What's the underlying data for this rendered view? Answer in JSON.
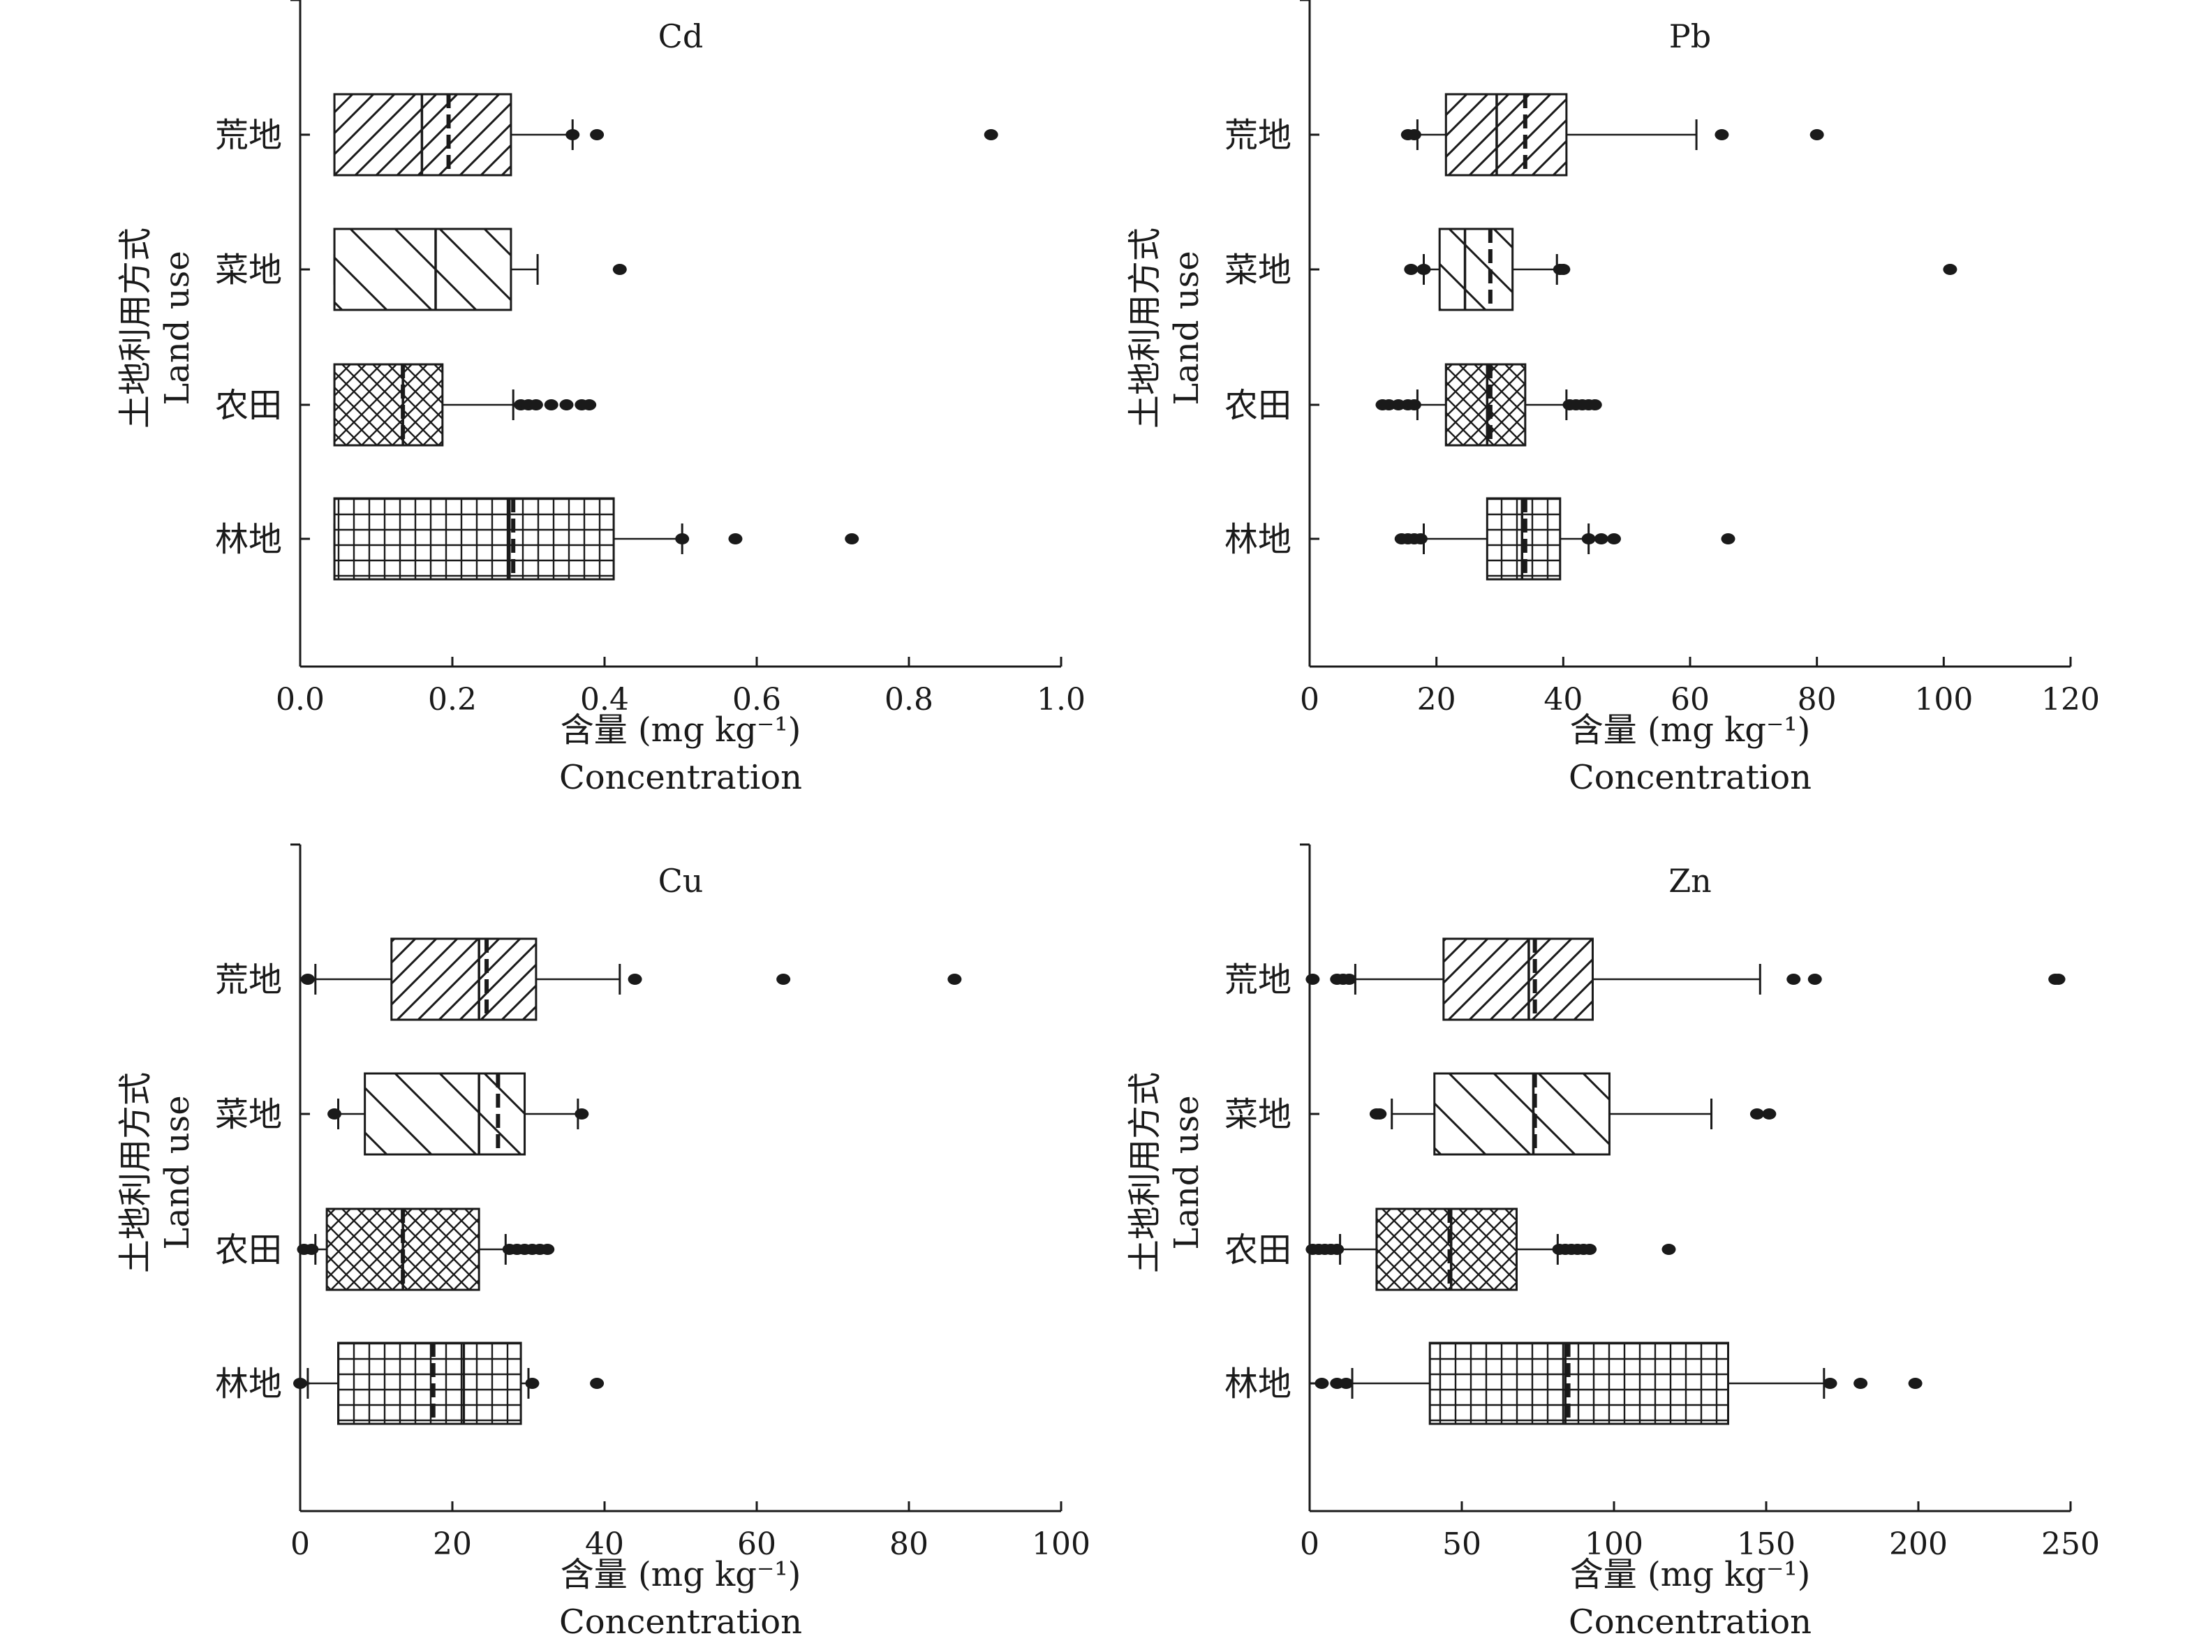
{
  "chart_data": [
    {
      "type": "box",
      "title": "Cd",
      "ylabel_zh": "土地利用方式",
      "ylabel_en": "Land use",
      "xlabel_zh": "含量 (mg kg⁻¹)",
      "xlabel_en": "Concentration",
      "xlim": [
        0,
        1.0
      ],
      "xticks": [
        "0.0",
        "0.2",
        "0.4",
        "0.6",
        "0.8",
        "1.0"
      ],
      "xtick_values": [
        0,
        0.2,
        0.4,
        0.6,
        0.8,
        1.0
      ],
      "categories": [
        "荒地",
        "菜地",
        "农田",
        "林地"
      ],
      "boxes": [
        {
          "category": "荒地",
          "pattern": "diag-up",
          "q1": 0.045,
          "median": 0.16,
          "mean": 0.195,
          "q3": 0.277,
          "whisker_low": 0.045,
          "whisker_high": 0.358,
          "outliers": [
            0.358,
            0.39,
            0.908
          ]
        },
        {
          "category": "菜地",
          "pattern": "diag-down",
          "q1": 0.045,
          "median": 0.178,
          "mean": null,
          "q3": 0.277,
          "whisker_low": 0.045,
          "whisker_high": 0.312,
          "outliers": [
            0.42
          ]
        },
        {
          "category": "农田",
          "pattern": "crosshatch",
          "q1": 0.045,
          "median": 0.135,
          "mean": 0.135,
          "q3": 0.187,
          "whisker_low": 0.045,
          "whisker_high": 0.28,
          "outliers": [
            0.29,
            0.3,
            0.31,
            0.33,
            0.35,
            0.37,
            0.38
          ]
        },
        {
          "category": "林地",
          "pattern": "grid",
          "q1": 0.045,
          "median": 0.275,
          "mean": 0.28,
          "q3": 0.412,
          "whisker_low": 0.045,
          "whisker_high": 0.502,
          "outliers": [
            0.502,
            0.572,
            0.725
          ]
        }
      ]
    },
    {
      "type": "box",
      "title": "Pb",
      "ylabel_zh": "土地利用方式",
      "ylabel_en": "Land use",
      "xlabel_zh": "含量 (mg kg⁻¹)",
      "xlabel_en": "Concentration",
      "xlim": [
        0,
        120
      ],
      "xticks": [
        "0",
        "20",
        "40",
        "60",
        "80",
        "100",
        "120"
      ],
      "xtick_values": [
        0,
        20,
        40,
        60,
        80,
        100,
        120
      ],
      "categories": [
        "荒地",
        "菜地",
        "农田",
        "林地"
      ],
      "boxes": [
        {
          "category": "荒地",
          "pattern": "diag-up",
          "q1": 21.5,
          "median": 29.5,
          "mean": 34,
          "q3": 40.5,
          "whisker_low": 17,
          "whisker_high": 61,
          "outliers": [
            15.5,
            16.5,
            65,
            80
          ]
        },
        {
          "category": "菜地",
          "pattern": "diag-down",
          "q1": 20.5,
          "median": 24.5,
          "mean": 28.5,
          "q3": 32,
          "whisker_low": 18,
          "whisker_high": 39,
          "outliers": [
            16,
            18,
            39.5,
            40,
            101
          ]
        },
        {
          "category": "农田",
          "pattern": "crosshatch",
          "q1": 21.5,
          "median": 28,
          "mean": 28.5,
          "q3": 34,
          "whisker_low": 17,
          "whisker_high": 40.5,
          "outliers": [
            11.5,
            12.5,
            14,
            15.5,
            16.5,
            41,
            42,
            43,
            44,
            45
          ]
        },
        {
          "category": "林地",
          "pattern": "grid",
          "q1": 28,
          "median": 33.5,
          "mean": 34,
          "q3": 39.5,
          "whisker_low": 18,
          "whisker_high": 44,
          "outliers": [
            14.5,
            15.5,
            16.5,
            17.5,
            44,
            46,
            48,
            66
          ]
        }
      ]
    },
    {
      "type": "box",
      "title": "Cu",
      "ylabel_zh": "土地利用方式",
      "ylabel_en": "Land use",
      "xlabel_zh": "含量 (mg kg⁻¹)",
      "xlabel_en": "Concentration",
      "xlim": [
        0,
        100
      ],
      "xticks": [
        "0",
        "20",
        "40",
        "60",
        "80",
        "100"
      ],
      "xtick_values": [
        0,
        20,
        40,
        60,
        80,
        100
      ],
      "categories": [
        "荒地",
        "菜地",
        "农田",
        "林地"
      ],
      "boxes": [
        {
          "category": "荒地",
          "pattern": "diag-up",
          "q1": 12,
          "median": 23.5,
          "mean": 24.5,
          "q3": 31,
          "whisker_low": 2,
          "whisker_high": 42,
          "outliers": [
            1,
            44,
            63.5,
            86
          ]
        },
        {
          "category": "菜地",
          "pattern": "diag-down",
          "q1": 8.5,
          "median": 23.5,
          "mean": 26,
          "q3": 29.5,
          "whisker_low": 5,
          "whisker_high": 36.5,
          "outliers": [
            4.5,
            37
          ]
        },
        {
          "category": "农田",
          "pattern": "crosshatch",
          "q1": 3.5,
          "median": 13.5,
          "mean": 13.5,
          "q3": 23.5,
          "whisker_low": 2,
          "whisker_high": 27,
          "outliers": [
            0.5,
            1.5,
            27.5,
            28.5,
            29.5,
            30.5,
            31.5,
            32.5
          ]
        },
        {
          "category": "林地",
          "pattern": "grid",
          "q1": 5,
          "median": 21.5,
          "mean": 17.5,
          "q3": 29,
          "whisker_low": 1,
          "whisker_high": 30,
          "outliers": [
            0,
            30.5,
            39
          ]
        }
      ]
    },
    {
      "type": "box",
      "title": "Zn",
      "ylabel_zh": "土地利用方式",
      "ylabel_en": "Land use",
      "xlabel_zh": "含量 (mg kg⁻¹)",
      "xlabel_en": "Concentration",
      "xlim": [
        0,
        250
      ],
      "xticks": [
        "0",
        "50",
        "100",
        "150",
        "200",
        "250"
      ],
      "xtick_values": [
        0,
        50,
        100,
        150,
        200,
        250
      ],
      "categories": [
        "荒地",
        "菜地",
        "农田",
        "林地"
      ],
      "boxes": [
        {
          "category": "荒地",
          "pattern": "diag-up",
          "q1": 44,
          "median": 72,
          "mean": 74,
          "q3": 93,
          "whisker_low": 15,
          "whisker_high": 148,
          "outliers": [
            1,
            9,
            11,
            13,
            159,
            166,
            245,
            246
          ]
        },
        {
          "category": "菜地",
          "pattern": "diag-down",
          "q1": 41,
          "median": 73.5,
          "mean": 74,
          "q3": 98.5,
          "whisker_low": 27,
          "whisker_high": 132,
          "outliers": [
            22,
            23,
            147,
            151
          ]
        },
        {
          "category": "农田",
          "pattern": "crosshatch",
          "q1": 22,
          "median": 46.5,
          "mean": 46,
          "q3": 68,
          "whisker_low": 10,
          "whisker_high": 81.5,
          "outliers": [
            1,
            3,
            5,
            7,
            9,
            82,
            84,
            86,
            88,
            90,
            92,
            118
          ]
        },
        {
          "category": "林地",
          "pattern": "grid",
          "q1": 39.5,
          "median": 84,
          "mean": 85,
          "q3": 137.5,
          "whisker_low": 14,
          "whisker_high": 169,
          "outliers": [
            4,
            9,
            12,
            171,
            181,
            199
          ]
        }
      ]
    }
  ]
}
